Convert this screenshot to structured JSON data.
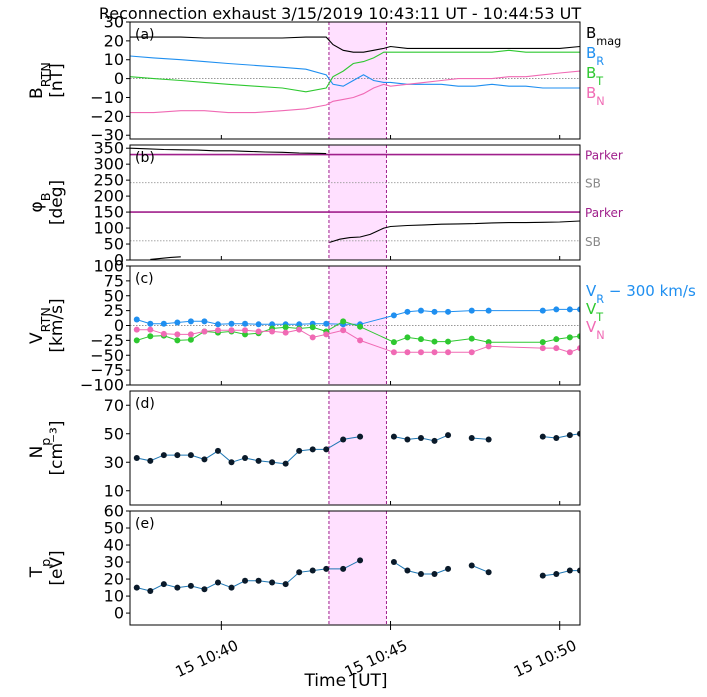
{
  "title": "Reconnection exhaust 3/15/2019 10:43:11 UT - 10:44:53 UT",
  "x_axis": {
    "label": "Time [UT]",
    "range_minutes": [
      37.3,
      50.6
    ],
    "ticks": [
      {
        "value": 40,
        "label": "15 10:40"
      },
      {
        "value": 45,
        "label": "15 10:45"
      },
      {
        "value": 50,
        "label": "15 10:50"
      }
    ]
  },
  "exhaust_interval": {
    "start_min": 43.18,
    "end_min": 44.88,
    "color": "#ff00ff"
  },
  "chart_data": [
    {
      "type": "line",
      "panel_label": "(a)",
      "ylabel": "B",
      "ylabel_sub": "RTN",
      "ylabel_unit": "[nT]",
      "ylim": [
        -32,
        30
      ],
      "yticks": [
        30,
        20,
        10,
        0,
        -10,
        -20,
        -30
      ],
      "zero_line": true,
      "series": [
        {
          "name": "B",
          "name_sub": "mag",
          "color": "#000000",
          "x": [
            37.3,
            38.0,
            38.8,
            39.5,
            40.2,
            41.0,
            41.8,
            42.5,
            43.1,
            43.3,
            43.6,
            43.9,
            44.2,
            44.5,
            44.8,
            45.0,
            45.5,
            46.0,
            46.5,
            47.0,
            47.5,
            48.0,
            48.5,
            49.0,
            49.5,
            50.0,
            50.6
          ],
          "y": [
            22,
            22,
            22,
            21.5,
            21.5,
            21.5,
            21.5,
            22,
            22,
            18,
            15,
            14,
            14,
            15,
            16,
            17,
            16,
            16,
            16,
            16,
            16,
            16,
            16,
            16,
            16,
            16,
            17
          ]
        },
        {
          "name": "B",
          "name_sub": "R",
          "color": "#1f8ff0",
          "x": [
            37.3,
            38.0,
            38.8,
            39.5,
            40.2,
            41.0,
            41.8,
            42.5,
            43.1,
            43.3,
            43.6,
            43.9,
            44.2,
            44.5,
            44.8,
            45.0,
            45.5,
            46.0,
            46.5,
            47.0,
            47.5,
            48.0,
            48.5,
            49.0,
            49.5,
            50.0,
            50.6
          ],
          "y": [
            12,
            11,
            10,
            9,
            8,
            7,
            6,
            5,
            2,
            -3,
            -4,
            -1,
            2,
            -1,
            -2,
            -2,
            -3,
            -3,
            -3,
            -4,
            -4,
            -3,
            -4,
            -4,
            -5,
            -5,
            -5
          ]
        },
        {
          "name": "B",
          "name_sub": "T",
          "color": "#2ec830",
          "x": [
            37.3,
            38.0,
            38.8,
            39.5,
            40.2,
            41.0,
            41.8,
            42.5,
            43.1,
            43.3,
            43.6,
            43.9,
            44.2,
            44.5,
            44.8,
            45.0,
            45.5,
            46.0,
            46.5,
            47.0,
            47.5,
            48.0,
            48.5,
            49.0,
            49.5,
            50.0,
            50.6
          ],
          "y": [
            1,
            0,
            -1,
            -2,
            -3,
            -4,
            -5,
            -7,
            -5,
            1,
            4,
            8,
            9,
            11,
            14,
            14,
            14,
            14,
            14,
            14,
            14,
            14,
            15,
            14,
            14,
            14,
            14
          ]
        },
        {
          "name": "B",
          "name_sub": "N",
          "color": "#f06ab4",
          "x": [
            37.3,
            38.0,
            38.8,
            39.5,
            40.2,
            41.0,
            41.8,
            42.5,
            43.1,
            43.3,
            43.6,
            43.9,
            44.2,
            44.5,
            44.8,
            45.0,
            45.5,
            46.0,
            46.5,
            47.0,
            47.5,
            48.0,
            48.5,
            49.0,
            49.5,
            50.0,
            50.6
          ],
          "y": [
            -18,
            -18,
            -17,
            -17,
            -18,
            -18,
            -17,
            -16,
            -14,
            -12,
            -11,
            -10,
            -8,
            -5,
            -3,
            -4,
            -3,
            -2,
            -1,
            0,
            0,
            0,
            1,
            1,
            2,
            3,
            4
          ]
        }
      ]
    },
    {
      "type": "line",
      "panel_label": "(b)",
      "ylabel": "φ",
      "ylabel_sub": "B",
      "ylabel_unit": "[deg]",
      "ylim": [
        0,
        360
      ],
      "yticks": [
        350,
        300,
        250,
        200,
        150,
        100,
        50,
        0
      ],
      "reference_lines": [
        {
          "value": 330,
          "label": "Parker",
          "color": "#a0208c",
          "style": "solid"
        },
        {
          "value": 242,
          "label": "SB",
          "color": "#999999",
          "style": "dotted"
        },
        {
          "value": 150,
          "label": "Parker",
          "color": "#a0208c",
          "style": "solid"
        },
        {
          "value": 60,
          "label": "SB",
          "color": "#999999",
          "style": "dotted"
        }
      ],
      "series": [
        {
          "color": "#000000",
          "x": [
            37.3,
            37.8,
            38.3,
            38.8,
            39.3,
            39.8,
            40.3,
            40.8,
            41.3,
            41.8,
            42.3,
            42.8,
            43.1
          ],
          "y": [
            350,
            348,
            346,
            345,
            344,
            342,
            342,
            340,
            338,
            337,
            335,
            334,
            333
          ]
        },
        {
          "color": "#000000",
          "x": [
            37.9,
            38.2,
            38.5,
            38.8
          ],
          "y": [
            2,
            5,
            8,
            10
          ]
        },
        {
          "color": "#000000",
          "x": [
            43.2,
            43.5,
            43.8,
            44.1,
            44.4,
            44.6,
            44.8,
            45.0,
            45.5,
            46.0,
            46.5,
            47.0,
            47.5,
            48.0,
            48.5,
            49.0,
            49.5,
            50.0,
            50.6
          ],
          "y": [
            55,
            65,
            70,
            72,
            80,
            90,
            100,
            105,
            108,
            110,
            112,
            113,
            114,
            116,
            117,
            117,
            118,
            119,
            122
          ]
        }
      ]
    },
    {
      "type": "line",
      "panel_label": "(c)",
      "ylabel": "V",
      "ylabel_sub": "RTN",
      "ylabel_unit": "[km/s]",
      "ylim": [
        -100,
        100
      ],
      "yticks": [
        100,
        75,
        50,
        25,
        0,
        -25,
        -50,
        -75,
        -100
      ],
      "zero_line": true,
      "series": [
        {
          "name": "V",
          "name_sub": "R",
          "name_suffix": " − 300 km/s",
          "color": "#1f8ff0",
          "x": [
            37.5,
            37.9,
            38.3,
            38.7,
            39.1,
            39.5,
            39.9,
            40.3,
            40.7,
            41.1,
            41.5,
            41.9,
            42.3,
            42.7,
            43.1,
            43.6,
            44.1,
            45.1,
            45.5,
            45.9,
            46.3,
            46.7,
            47.4,
            47.9,
            49.5,
            49.9,
            50.3,
            50.6
          ],
          "y": [
            10,
            3,
            3,
            5,
            7,
            7,
            2,
            3,
            3,
            2,
            2,
            2,
            2,
            3,
            3,
            2,
            2,
            17,
            23,
            25,
            23,
            23,
            25,
            25,
            25,
            27,
            27,
            27
          ]
        },
        {
          "name": "V",
          "name_sub": "T",
          "color": "#2ec830",
          "x": [
            37.5,
            37.9,
            38.3,
            38.7,
            39.1,
            39.5,
            39.9,
            40.3,
            40.7,
            41.1,
            41.5,
            41.9,
            42.3,
            42.7,
            43.1,
            43.6,
            44.1,
            45.1,
            45.5,
            45.9,
            46.3,
            46.7,
            47.4,
            47.9,
            49.5,
            49.9,
            50.3,
            50.6
          ],
          "y": [
            -25,
            -18,
            -17,
            -25,
            -24,
            -10,
            -12,
            -10,
            -15,
            -13,
            -5,
            -3,
            -5,
            -3,
            -10,
            7,
            -2,
            -28,
            -20,
            -23,
            -27,
            -27,
            -22,
            -28,
            -28,
            -23,
            -20,
            -18
          ]
        },
        {
          "name": "V",
          "name_sub": "N",
          "color": "#f06ab4",
          "x": [
            37.5,
            37.9,
            38.3,
            38.7,
            39.1,
            39.5,
            39.9,
            40.3,
            40.7,
            41.1,
            41.5,
            41.9,
            42.3,
            42.7,
            43.1,
            43.6,
            44.1,
            45.1,
            45.5,
            45.9,
            46.3,
            46.7,
            47.4,
            47.9,
            49.5,
            49.9,
            50.3,
            50.6
          ],
          "y": [
            -7,
            -7,
            -14,
            -15,
            -15,
            -10,
            -8,
            -8,
            -8,
            -10,
            -10,
            -12,
            -7,
            -20,
            -15,
            -8,
            -25,
            -45,
            -45,
            -45,
            -45,
            -45,
            -45,
            -35,
            -38,
            -38,
            -45,
            -38
          ]
        }
      ]
    },
    {
      "type": "line",
      "panel_label": "(d)",
      "ylabel": "N",
      "ylabel_sub": "p",
      "ylabel_unit": "[cm⁻³]",
      "ylim": [
        0,
        80
      ],
      "yticks": [
        70,
        50,
        30,
        10
      ],
      "series": [
        {
          "color": "#1f77b4",
          "marker_color": "#0a1a2a",
          "segments": [
            {
              "x": [
                37.5,
                37.9,
                38.3,
                38.7,
                39.1,
                39.5,
                39.9,
                40.3,
                40.7,
                41.1,
                41.5,
                41.9,
                42.3,
                42.7,
                43.1,
                43.6,
                44.1
              ],
              "y": [
                33,
                31,
                35,
                35,
                35,
                32,
                38,
                30,
                33,
                31,
                30,
                29,
                38,
                39,
                39,
                46,
                48
              ]
            },
            {
              "x": [
                45.1,
                45.5,
                45.9,
                46.3,
                46.7
              ],
              "y": [
                48,
                46,
                47,
                45,
                49
              ]
            },
            {
              "x": [
                47.4,
                47.9
              ],
              "y": [
                47,
                46
              ]
            },
            {
              "x": [
                49.5,
                49.9,
                50.3,
                50.6
              ],
              "y": [
                48,
                47,
                49,
                50
              ]
            }
          ]
        }
      ]
    },
    {
      "type": "line",
      "panel_label": "(e)",
      "ylabel": "T",
      "ylabel_sub": "p",
      "ylabel_unit": "[eV]",
      "ylim": [
        -7,
        60
      ],
      "yticks": [
        60,
        50,
        40,
        30,
        20,
        10,
        0
      ],
      "series": [
        {
          "color": "#1f77b4",
          "marker_color": "#0a1a2a",
          "segments": [
            {
              "x": [
                37.5,
                37.9,
                38.3,
                38.7,
                39.1,
                39.5,
                39.9,
                40.3,
                40.7,
                41.1,
                41.5,
                41.9,
                42.3,
                42.7,
                43.1,
                43.6,
                44.1
              ],
              "y": [
                15,
                13,
                17,
                15,
                16,
                14,
                18,
                15,
                19,
                19,
                18,
                17,
                24,
                25,
                26,
                26,
                31
              ]
            },
            {
              "x": [
                45.1,
                45.5,
                45.9,
                46.3,
                46.7
              ],
              "y": [
                30,
                25,
                23,
                23,
                26
              ]
            },
            {
              "x": [
                47.4,
                47.9
              ],
              "y": [
                28,
                24
              ]
            },
            {
              "x": [
                49.5,
                49.9,
                50.3,
                50.6
              ],
              "y": [
                22,
                23,
                25,
                25
              ]
            }
          ]
        }
      ]
    }
  ]
}
